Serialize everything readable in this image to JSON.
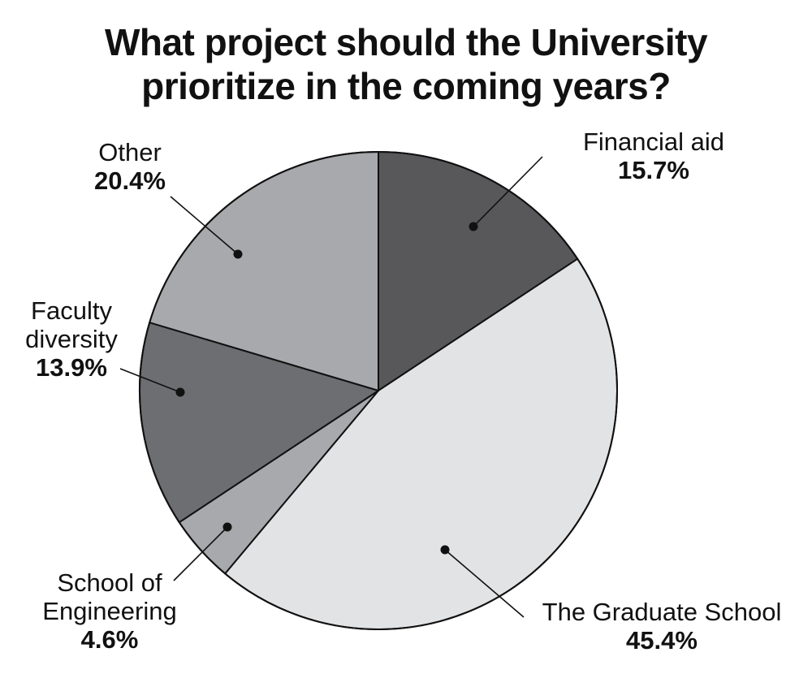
{
  "title_lines": [
    "What project should the University",
    "prioritize in the coming years?"
  ],
  "chart_data": {
    "type": "pie",
    "title": "What project should the University prioritize in the coming years?",
    "start_angle_deg": 0,
    "direction": "clockwise",
    "slices": [
      {
        "label": "Financial aid",
        "label_lines": [
          "Financial aid"
        ],
        "value_label": "15.7%",
        "value": 15.7,
        "color": "#58585b"
      },
      {
        "label": "The Graduate School",
        "label_lines": [
          "The Graduate School"
        ],
        "value_label": "45.4%",
        "value": 45.4,
        "color": "#e2e3e5"
      },
      {
        "label": "School of Engineering",
        "label_lines": [
          "School of",
          "Engineering"
        ],
        "value_label": "4.6%",
        "value": 4.6,
        "color": "#a7a9ac"
      },
      {
        "label": "Faculty diversity",
        "label_lines": [
          "Faculty",
          "diversity"
        ],
        "value_label": "13.9%",
        "value": 13.9,
        "color": "#6d6e71"
      },
      {
        "label": "Other",
        "label_lines": [
          "Other"
        ],
        "value_label": "20.4%",
        "value": 20.4,
        "color": "#a7a9ac"
      }
    ],
    "outline_color": "#111111",
    "legend": "none"
  }
}
